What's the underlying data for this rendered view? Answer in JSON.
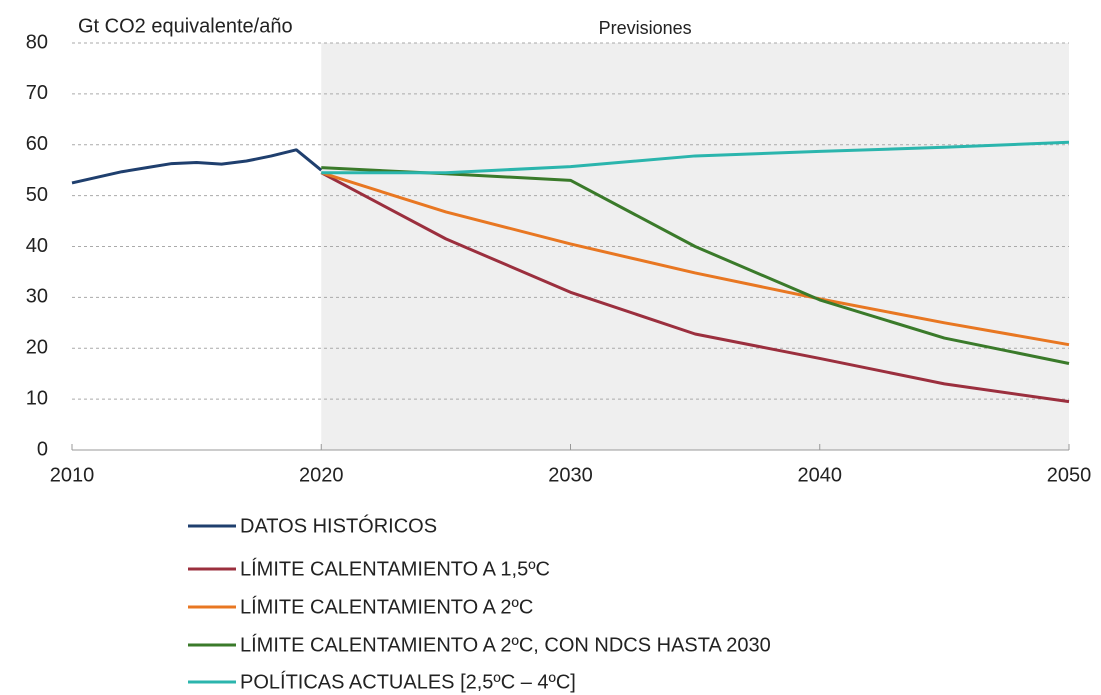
{
  "chart_data": {
    "type": "line",
    "ylabel": "Gt CO2 equivalente/año",
    "shaded_region": {
      "label": "Previsiones",
      "from": 2020,
      "to": 2050
    },
    "x": [
      2010,
      2011,
      2012,
      2013,
      2014,
      2015,
      2016,
      2017,
      2018,
      2019,
      2020,
      2025,
      2030,
      2035,
      2040,
      2045,
      2050
    ],
    "xlim": [
      2010,
      2050
    ],
    "xticks": [
      2010,
      2020,
      2030,
      2040,
      2050
    ],
    "ylim": [
      0,
      80
    ],
    "yticks": [
      0,
      10,
      20,
      30,
      40,
      50,
      60,
      70,
      80
    ],
    "grid": true,
    "legend": "bottom",
    "series": [
      {
        "name": "DATOS HISTÓRICOS",
        "color": "#1f3f6e",
        "values": [
          52.5,
          53.6,
          54.7,
          55.5,
          56.3,
          56.5,
          56.2,
          56.8,
          57.8,
          59.0,
          55.0,
          null,
          null,
          null,
          null,
          null,
          null
        ]
      },
      {
        "name": "LÍMITE CALENTAMIENTO A 1,5ºC",
        "color": "#9b2f3e",
        "values": [
          null,
          null,
          null,
          null,
          null,
          null,
          null,
          null,
          null,
          null,
          54.5,
          41.5,
          31.0,
          22.8,
          18.0,
          13.0,
          9.5
        ]
      },
      {
        "name": "LÍMITE CALENTAMIENTO A 2ºC",
        "color": "#e87722",
        "values": [
          null,
          null,
          null,
          null,
          null,
          null,
          null,
          null,
          null,
          null,
          54.5,
          46.8,
          40.5,
          34.8,
          29.7,
          25.0,
          20.7
        ]
      },
      {
        "name": "LÍMITE CALENTAMIENTO A 2ºC, CON NDCS HASTA 2030",
        "color": "#3a7a2a",
        "values": [
          null,
          null,
          null,
          null,
          null,
          null,
          null,
          null,
          null,
          null,
          55.5,
          54.3,
          53.0,
          40.0,
          29.5,
          22.0,
          17.0
        ]
      },
      {
        "name": "POLÍTICAS ACTUALES [2,5ºC – 4ºC]",
        "color": "#2bb5ad",
        "values": [
          null,
          null,
          null,
          null,
          null,
          null,
          null,
          null,
          null,
          null,
          54.5,
          54.5,
          55.7,
          57.8,
          58.7,
          59.5,
          60.5
        ]
      }
    ]
  }
}
